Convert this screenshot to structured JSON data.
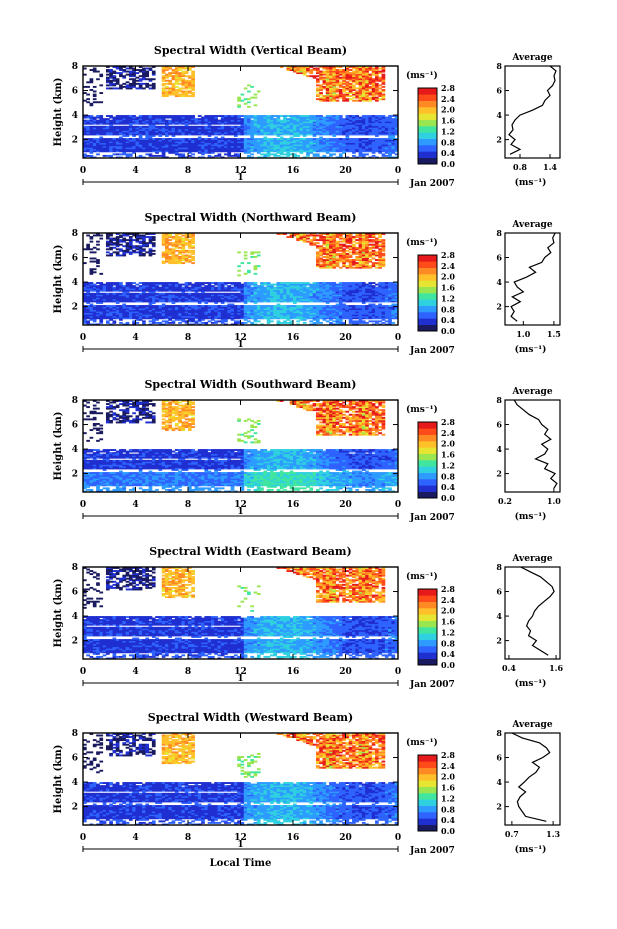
{
  "colors": {
    "scale": [
      "#1a1a60",
      "#1f2fd0",
      "#2f63ff",
      "#2d9bff",
      "#2fd0e0",
      "#40e6a0",
      "#9ae650",
      "#e6e632",
      "#ffc02a",
      "#ff8a24",
      "#ff4a1a",
      "#e61a1a"
    ],
    "axis": "#000000",
    "background": "#ffffff"
  },
  "figure": {
    "xlabel": "Local Time",
    "date_label": "Jan 2007",
    "day_label": "1",
    "average_title": "Average",
    "unit_label": "(ms⁻¹)",
    "ylabel": "Height (km)"
  },
  "chart_data": [
    {
      "type": "heatmap",
      "title": "Spectral Width (Vertical Beam)",
      "ylabel": "Height (km)",
      "xlim": [
        0,
        24
      ],
      "ylim": [
        0.5,
        8
      ],
      "x_ticks": [
        "0",
        "4",
        "8",
        "12",
        "16",
        "20",
        "0"
      ],
      "y_ticks": [
        "2",
        "4",
        "6",
        "8"
      ],
      "colorbar": {
        "label": "(ms⁻¹)",
        "ticks": [
          "0.0",
          "0.4",
          "0.8",
          "1.2",
          "1.6",
          "2.0",
          "2.4",
          "2.8"
        ],
        "range": [
          0.0,
          3.0
        ]
      },
      "date_label": "Jan 2007",
      "day_label": "1",
      "profile": {
        "title": "Average",
        "xlabel": "(ms⁻¹)",
        "x_ticks": [
          "0.8",
          "1.4"
        ],
        "xlim": [
          0.5,
          1.6
        ],
        "heights": [
          0.8,
          1.2,
          1.6,
          2.0,
          2.4,
          2.8,
          3.2,
          3.6,
          4.0,
          4.4,
          4.8,
          5.2,
          5.6,
          6.0,
          6.4,
          6.8,
          7.2,
          7.6,
          8.0
        ],
        "values": [
          0.6,
          0.8,
          0.62,
          0.7,
          0.58,
          0.66,
          0.64,
          0.7,
          0.8,
          1.05,
          1.25,
          1.3,
          1.4,
          1.35,
          1.45,
          1.5,
          1.48,
          1.52,
          1.4
        ]
      }
    },
    {
      "type": "heatmap",
      "title": "Spectral Width (Northward Beam)",
      "ylabel": "Height (km)",
      "xlim": [
        0,
        24
      ],
      "ylim": [
        0.5,
        8
      ],
      "x_ticks": [
        "0",
        "4",
        "8",
        "12",
        "16",
        "20",
        "0"
      ],
      "y_ticks": [
        "2",
        "4",
        "6",
        "8"
      ],
      "colorbar": {
        "label": "(ms⁻¹)",
        "ticks": [
          "0.0",
          "0.4",
          "0.8",
          "1.2",
          "1.6",
          "2.0",
          "2.4",
          "2.8"
        ],
        "range": [
          0.0,
          3.0
        ]
      },
      "date_label": "Jan 2007",
      "day_label": "1",
      "profile": {
        "title": "Average",
        "xlabel": "(ms⁻¹)",
        "x_ticks": [
          "1.0",
          "1.5"
        ],
        "xlim": [
          0.7,
          1.6
        ],
        "heights": [
          0.8,
          1.2,
          1.6,
          2.0,
          2.4,
          2.8,
          3.2,
          3.6,
          4.0,
          4.4,
          4.8,
          5.2,
          5.6,
          6.0,
          6.4,
          6.8,
          7.2,
          7.6,
          8.0
        ],
        "values": [
          0.9,
          0.8,
          0.85,
          0.8,
          0.95,
          0.82,
          1.0,
          0.9,
          0.85,
          1.05,
          1.2,
          1.1,
          1.3,
          1.35,
          1.45,
          1.4,
          1.5,
          1.48,
          1.52
        ]
      }
    },
    {
      "type": "heatmap",
      "title": "Spectral Width (Southward Beam)",
      "ylabel": "Height (km)",
      "xlim": [
        0,
        24
      ],
      "ylim": [
        0.5,
        8
      ],
      "x_ticks": [
        "0",
        "4",
        "8",
        "12",
        "16",
        "20",
        "0"
      ],
      "y_ticks": [
        "2",
        "4",
        "6",
        "8"
      ],
      "colorbar": {
        "label": "(ms⁻¹)",
        "ticks": [
          "0.0",
          "0.4",
          "0.8",
          "1.2",
          "1.6",
          "2.0",
          "2.4",
          "2.8"
        ],
        "range": [
          0.0,
          3.0
        ]
      },
      "date_label": "Jan 2007",
      "day_label": "1",
      "profile": {
        "title": "Average",
        "xlabel": "(ms⁻¹)",
        "x_ticks": [
          "0.2",
          "1.0"
        ],
        "xlim": [
          0.2,
          1.1
        ],
        "heights": [
          0.8,
          1.2,
          1.6,
          2.0,
          2.4,
          2.8,
          3.2,
          3.6,
          4.0,
          4.4,
          4.8,
          5.2,
          5.6,
          6.0,
          6.4,
          6.8,
          7.2,
          7.6,
          8.0
        ],
        "values": [
          1.0,
          1.05,
          0.95,
          1.02,
          0.85,
          0.9,
          0.7,
          0.85,
          0.9,
          0.8,
          0.95,
          0.85,
          0.9,
          0.8,
          0.75,
          0.6,
          0.5,
          0.4,
          0.35
        ]
      }
    },
    {
      "type": "heatmap",
      "title": "Spectral Width (Eastward Beam)",
      "ylabel": "Height (km)",
      "xlim": [
        0,
        24
      ],
      "ylim": [
        0.5,
        8
      ],
      "x_ticks": [
        "0",
        "4",
        "8",
        "12",
        "16",
        "20",
        "0"
      ],
      "y_ticks": [
        "2",
        "4",
        "6",
        "8"
      ],
      "colorbar": {
        "label": "(ms⁻¹)",
        "ticks": [
          "0.0",
          "0.4",
          "0.8",
          "1.2",
          "1.6",
          "2.0",
          "2.4",
          "2.8"
        ],
        "range": [
          0.0,
          3.0
        ]
      },
      "date_label": "Jan 2007",
      "day_label": "1",
      "profile": {
        "title": "Average",
        "xlabel": "(ms⁻¹)",
        "x_ticks": [
          "0.4",
          "1.6"
        ],
        "xlim": [
          0.3,
          1.7
        ],
        "heights": [
          0.8,
          1.2,
          1.6,
          2.0,
          2.4,
          2.8,
          3.2,
          3.6,
          4.0,
          4.4,
          4.8,
          5.2,
          5.6,
          6.0,
          6.4,
          6.8,
          7.2,
          7.6,
          8.0
        ],
        "values": [
          1.4,
          1.2,
          1.0,
          1.1,
          0.9,
          0.95,
          0.85,
          0.9,
          1.0,
          1.05,
          1.15,
          1.3,
          1.45,
          1.55,
          1.5,
          1.35,
          1.2,
          0.95,
          0.7
        ]
      }
    },
    {
      "type": "heatmap",
      "title": "Spectral Width (Westward Beam)",
      "ylabel": "Height (km)",
      "xlim": [
        0,
        24
      ],
      "ylim": [
        0.5,
        8
      ],
      "x_ticks": [
        "0",
        "4",
        "8",
        "12",
        "16",
        "20",
        "0"
      ],
      "y_ticks": [
        "2",
        "4",
        "6",
        "8"
      ],
      "colorbar": {
        "label": "(ms⁻¹)",
        "ticks": [
          "0.0",
          "0.4",
          "0.8",
          "1.2",
          "1.6",
          "2.0",
          "2.4",
          "2.8"
        ],
        "range": [
          0.0,
          3.0
        ]
      },
      "date_label": "Jan 2007",
      "day_label": "1",
      "xlabel": "Local Time",
      "profile": {
        "title": "Average",
        "xlabel": "(ms⁻¹)",
        "x_ticks": [
          "0.7",
          "1.3"
        ],
        "xlim": [
          0.6,
          1.4
        ],
        "heights": [
          0.8,
          1.2,
          1.6,
          2.0,
          2.4,
          2.8,
          3.2,
          3.6,
          4.0,
          4.4,
          4.8,
          5.2,
          5.6,
          6.0,
          6.4,
          6.8,
          7.2,
          7.6,
          8.0
        ],
        "values": [
          1.2,
          0.9,
          0.85,
          0.8,
          0.78,
          0.82,
          0.9,
          0.8,
          0.88,
          0.95,
          1.05,
          1.1,
          1.0,
          1.15,
          1.25,
          1.2,
          1.1,
          0.85,
          0.7
        ]
      }
    }
  ]
}
